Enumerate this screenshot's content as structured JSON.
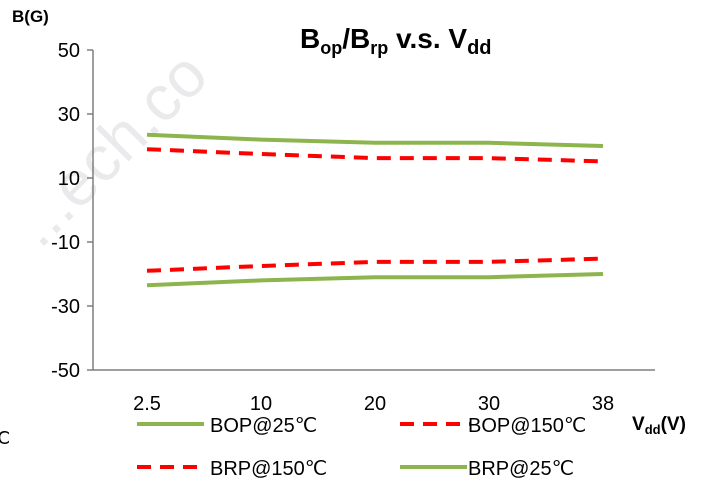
{
  "watermark": "...ech.co",
  "stray_glyph": "℃",
  "chart_data": {
    "type": "line",
    "title": {
      "main1": "B",
      "sub1": "op",
      "slash": "/B",
      "sub2": "rp",
      "rest": " v.s. V",
      "sub3": "dd"
    },
    "ylabel": "B(G)",
    "xlabel": {
      "main": "V",
      "sub": "dd",
      "unit": "(V)"
    },
    "categories": [
      "2.5",
      "10",
      "20",
      "30",
      "38"
    ],
    "yticks": [
      "50",
      "30",
      "10",
      "-10",
      "-30",
      "-50"
    ],
    "ylim": [
      -50,
      50
    ],
    "legend_position": "bottom",
    "grid": false,
    "series": [
      {
        "name": "BOP@25℃",
        "values": [
          23.5,
          22,
          21,
          21,
          20
        ],
        "color": "#8db54e",
        "style": "solid"
      },
      {
        "name": "BOP@150℃",
        "values": [
          19,
          17.5,
          16.2,
          16.2,
          15.2
        ],
        "color": "#ff0000",
        "style": "dashed"
      },
      {
        "name": "BRP@150℃",
        "values": [
          -19,
          -17.5,
          -16.2,
          -16.2,
          -15.2
        ],
        "color": "#ff0000",
        "style": "dashed"
      },
      {
        "name": "BRP@25℃",
        "values": [
          -23.5,
          -22,
          -21,
          -21,
          -20
        ],
        "color": "#8db54e",
        "style": "solid"
      }
    ]
  }
}
